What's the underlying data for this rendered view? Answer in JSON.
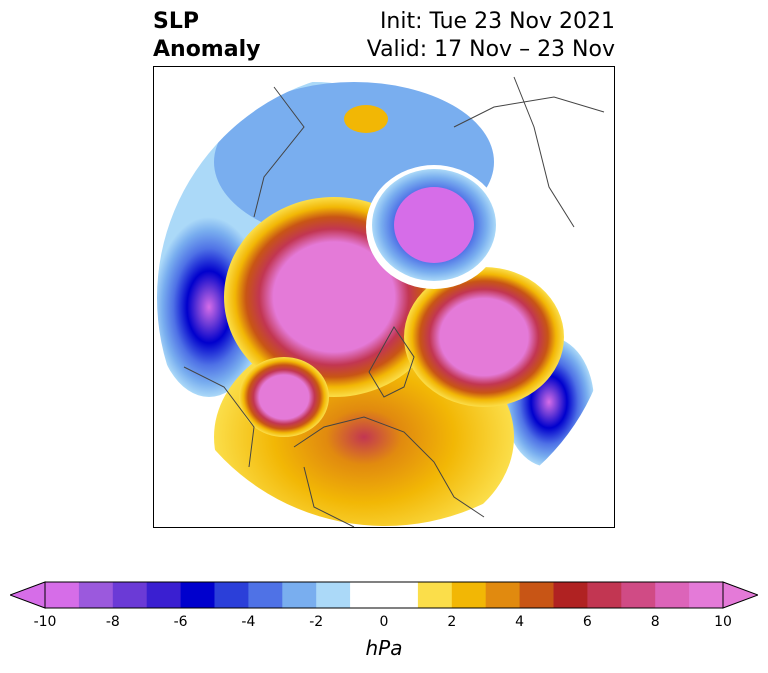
{
  "title": {
    "left_line1": "SLP",
    "left_line2": "Anomaly",
    "right_line1": "Init: Tue 23 Nov 2021",
    "right_line2": "Valid: 17 Nov – 23 Nov"
  },
  "colorbar": {
    "unit_label": "hPa",
    "ticks": [
      "-10",
      "-8",
      "-6",
      "-4",
      "-2",
      "0",
      "2",
      "4",
      "6",
      "8",
      "10"
    ],
    "colors": [
      "#d66de8",
      "#9b59dd",
      "#6b3ad6",
      "#3a1fd1",
      "#0000cd",
      "#2b3fd9",
      "#4f72e6",
      "#79aeef",
      "#abd9f8",
      "#ffffff",
      "#ffffff",
      "#fbde4a",
      "#f2b705",
      "#e18a0f",
      "#c85515",
      "#b02222",
      "#c23652",
      "#d04b85",
      "#dc64b9",
      "#e47ad8"
    ]
  },
  "map": {
    "projection": "north-polar-stereographic",
    "colors": {
      "neg_strong": "#d66de8",
      "neg_core": "#0000cd",
      "neg_mid": "#4f72e6",
      "neg_weak": "#abd9f8",
      "pos_weak": "#fbde4a",
      "pos_mid": "#e18a0f",
      "pos_strong": "#b02222",
      "pos_max": "#e47ad8"
    }
  }
}
